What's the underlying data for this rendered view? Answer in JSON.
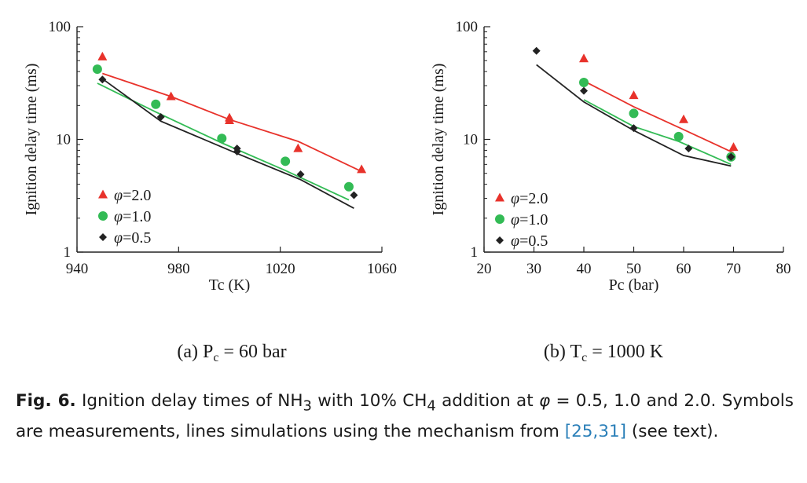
{
  "chart_data": [
    {
      "type": "scatter",
      "caption": "(a) P",
      "caption_sub": "c",
      "caption_rest": " = 60 bar",
      "xlabel": "Tc (K)",
      "ylabel": "Ignition delay time (ms)",
      "xlim": [
        940,
        1060
      ],
      "ylim": [
        1,
        100
      ],
      "yscale": "log",
      "xticks": [
        "940",
        "980",
        "1020",
        "1060"
      ],
      "xtick_values": [
        940,
        980,
        1020,
        1060
      ],
      "yticks": [
        "1",
        "10",
        "100"
      ],
      "ytick_values": [
        1,
        10,
        100
      ],
      "legend_position": "lower-left",
      "series": [
        {
          "name": "φ=2.0",
          "name_prefix": "φ",
          "name_value": "=2.0",
          "marker": "triangle",
          "color": "#e8322b",
          "points": [
            [
              950,
              54
            ],
            [
              977,
              24
            ],
            [
              1000,
              15.5
            ],
            [
              1000,
              14.7
            ],
            [
              1027,
              8.3
            ],
            [
              1052,
              5.4
            ]
          ],
          "line": [
            [
              950,
              38.5
            ],
            [
              977,
              24
            ],
            [
              1000,
              15
            ],
            [
              1027,
              9.6
            ],
            [
              1052,
              5.2
            ]
          ]
        },
        {
          "name": "φ=1.0",
          "name_prefix": "φ",
          "name_value": "=1.0",
          "marker": "circle",
          "color": "#33bb55",
          "points": [
            [
              948,
              42
            ],
            [
              971,
              20.5
            ],
            [
              997,
              10.2
            ],
            [
              1022,
              6.4
            ],
            [
              1047,
              3.8
            ]
          ],
          "line": [
            [
              948,
              31.5
            ],
            [
              971,
              17.5
            ],
            [
              997,
              9.3
            ],
            [
              1022,
              5.3
            ],
            [
              1047,
              2.9
            ]
          ]
        },
        {
          "name": "φ=0.5",
          "name_prefix": "φ",
          "name_value": "=0.5",
          "marker": "diamond",
          "color": "#222222",
          "points": [
            [
              950,
              34
            ],
            [
              973,
              15.8
            ],
            [
              1003,
              8.3
            ],
            [
              1003,
              7.8
            ],
            [
              1028,
              4.9
            ],
            [
              1049,
              3.2
            ]
          ],
          "line": [
            [
              950,
              34.5
            ],
            [
              973,
              14.5
            ],
            [
              1003,
              7.5
            ],
            [
              1028,
              4.4
            ],
            [
              1049,
              2.45
            ]
          ]
        }
      ]
    },
    {
      "type": "scatter",
      "caption": "(b) T",
      "caption_sub": "c",
      "caption_rest": " = 1000 K",
      "xlabel": "Pc (bar)",
      "ylabel": "Ignition delay time (ms)",
      "xlim": [
        20,
        80
      ],
      "ylim": [
        1,
        100
      ],
      "yscale": "log",
      "xticks": [
        "20",
        "30",
        "40",
        "50",
        "60",
        "70",
        "80"
      ],
      "xtick_values": [
        20,
        30,
        40,
        50,
        60,
        70,
        80
      ],
      "yticks": [
        "1",
        "10",
        "100"
      ],
      "ytick_values": [
        1,
        10,
        100
      ],
      "legend_position": "lower-left",
      "series": [
        {
          "name": "φ=2.0",
          "name_prefix": "φ",
          "name_value": "=2.0",
          "marker": "triangle",
          "color": "#e8322b",
          "points": [
            [
              40,
              52
            ],
            [
              50,
              24.5
            ],
            [
              60,
              15
            ],
            [
              70,
              8.5
            ]
          ],
          "line": [
            [
              40,
              33
            ],
            [
              50,
              19.5
            ],
            [
              60,
              12.2
            ],
            [
              70,
              7.6
            ]
          ]
        },
        {
          "name": "φ=1.0",
          "name_prefix": "φ",
          "name_value": "=1.0",
          "marker": "circle",
          "color": "#33bb55",
          "points": [
            [
              40,
              32
            ],
            [
              50,
              17
            ],
            [
              59,
              10.6
            ],
            [
              69.5,
              7
            ]
          ],
          "line": [
            [
              40,
              22.5
            ],
            [
              50,
              13
            ],
            [
              59,
              9.6
            ],
            [
              69.5,
              6
            ]
          ]
        },
        {
          "name": "φ=0.5",
          "name_prefix": "φ",
          "name_value": "=0.5",
          "marker": "diamond",
          "color": "#222222",
          "points": [
            [
              30.5,
              61
            ],
            [
              40,
              27
            ],
            [
              50,
              12.6
            ],
            [
              61,
              8.3
            ],
            [
              69.5,
              7
            ]
          ],
          "line": [
            [
              30.5,
              46
            ],
            [
              40,
              21.5
            ],
            [
              50,
              12
            ],
            [
              60,
              7.2
            ],
            [
              69.5,
              5.8
            ]
          ]
        }
      ]
    }
  ],
  "caption": {
    "label": "Fig. 6.",
    "text_1": " Ignition delay times of NH",
    "sub_1": "3",
    "text_2": " with 10% CH",
    "sub_2": "4",
    "text_3": " addition at ",
    "phi": "φ",
    "text_4": " = 0.5, 1.0 and 2.0. Symbols are measurements, lines simulations using the mechanism from ",
    "ref": "[25,31]",
    "text_5": " (see text)."
  }
}
